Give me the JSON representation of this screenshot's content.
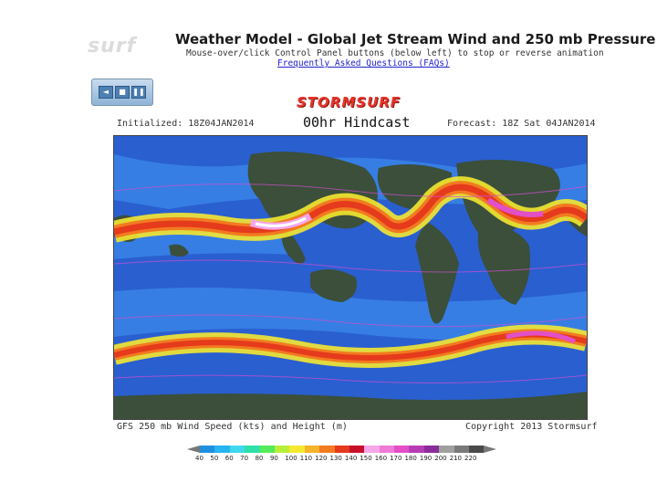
{
  "header": {
    "brand_ghost": "surf",
    "title": "Weather Model - Global Jet Stream Wind and 250 mb Pressure",
    "subtitle": "Mouse-over/click Control Panel buttons (below left) to stop or reverse animation",
    "faq_link": "Frequently Asked Questions (FAQs)"
  },
  "controls": {
    "buttons": [
      {
        "name": "reverse",
        "glyph": "◄"
      },
      {
        "name": "stop",
        "glyph": "■"
      },
      {
        "name": "pause",
        "glyph": "❚❚"
      }
    ]
  },
  "map": {
    "logo": "STORMSURF",
    "initialized": "Initialized: 18Z04JAN2014",
    "hindcast": "00hr Hindcast",
    "forecast": "Forecast: 18Z Sat 04JAN2014",
    "footer_left": "GFS 250 mb Wind Speed (kts) and Height (m)",
    "footer_right": "Copyright 2013 Stormsurf",
    "ocean_color": "#2a5fd0",
    "land_color": "#3b4f3a"
  },
  "scale": {
    "labels": [
      "40",
      "50",
      "60",
      "70",
      "80",
      "90",
      "100",
      "110",
      "120",
      "130",
      "140",
      "150",
      "160",
      "170",
      "180",
      "190",
      "200",
      "210",
      "220"
    ],
    "colors": [
      "#1f8fe0",
      "#27b4f0",
      "#3fd8ee",
      "#2fe0a8",
      "#55ea5a",
      "#b8ee3a",
      "#f4e830",
      "#f6b42a",
      "#f27a20",
      "#e53a1c",
      "#c8102a",
      "#f6a6e8",
      "#f07ad6",
      "#e24fc8",
      "#b63cb6",
      "#8c2c9c",
      "#a0a0a0",
      "#7a7a7a",
      "#4a4a4a"
    ]
  }
}
